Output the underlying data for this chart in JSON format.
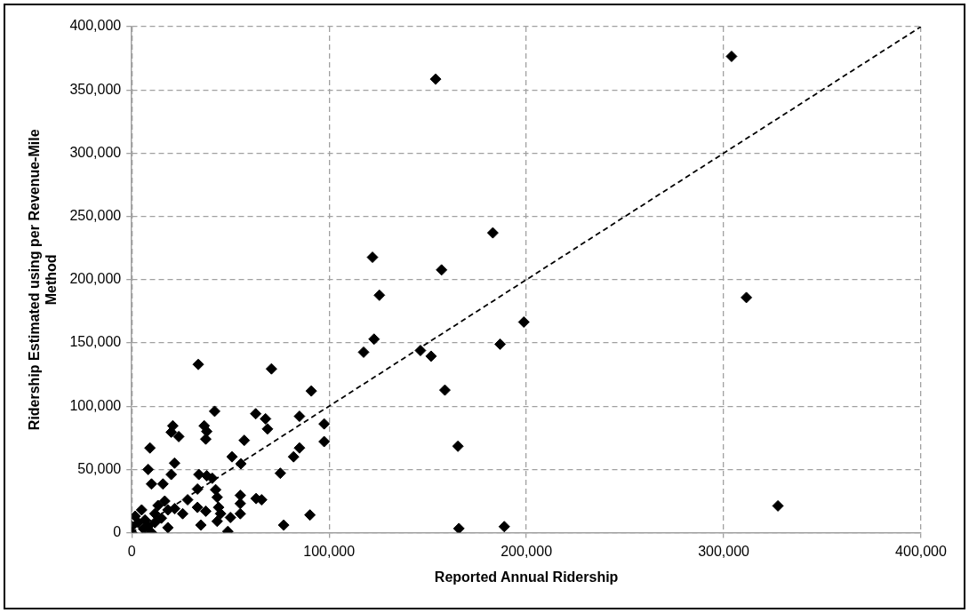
{
  "chart_data": {
    "type": "scatter",
    "xlabel": "Reported Annual Ridership",
    "ylabel": "Ridership Estimated using per Revenue-Mile Method",
    "xlim": [
      0,
      400000
    ],
    "ylim": [
      0,
      400000
    ],
    "xticks": [
      0,
      {
        "value": 100000,
        "label": "100,000"
      },
      {
        "value": 200000,
        "label": "200,000"
      },
      {
        "value": 300000,
        "label": "300,000"
      },
      {
        "value": 400000,
        "label": "400,000"
      }
    ],
    "yticks": [
      0,
      {
        "value": 50000,
        "label": "50,000"
      },
      {
        "value": 100000,
        "label": "100,000"
      },
      {
        "value": 150000,
        "label": "150,000"
      },
      {
        "value": 200000,
        "label": "200,000"
      },
      {
        "value": 250000,
        "label": "250,000"
      },
      {
        "value": 300000,
        "label": "300,000"
      },
      {
        "value": 350000,
        "label": "350,000"
      },
      {
        "value": 400000,
        "label": "400,000"
      }
    ],
    "grid": true,
    "legend": false,
    "series": [
      {
        "type": "scatter",
        "color": "#000000",
        "marker": "diamond",
        "x": [
          33700,
          70800,
          91000,
          42000,
          62800,
          67800,
          68800,
          85000,
          97500,
          97500,
          20800,
          20000,
          23800,
          36700,
          38000,
          37500,
          9200,
          57000,
          85000,
          82000,
          50800,
          55300,
          21700,
          8300,
          75300,
          10000,
          20000,
          15800,
          34000,
          38000,
          40800,
          33300,
          42500,
          43300,
          28300,
          55000,
          55000,
          63000,
          65800,
          33300,
          37500,
          44000,
          45000,
          43300,
          35000,
          50000,
          55000,
          48700,
          77000,
          90300,
          25800,
          16700,
          13300,
          18300,
          21700,
          11700,
          15000,
          5000,
          1700,
          0,
          3300,
          8300,
          10000,
          18300,
          0,
          6700,
          11700,
          6000,
          154000,
          304000,
          183000,
          122000,
          157000,
          125500,
          198700,
          122800,
          186700,
          117500,
          146300,
          151700,
          158700,
          165300,
          165800,
          188800,
          311500,
          327500
        ],
        "values": [
          133000,
          129500,
          112000,
          96000,
          94000,
          90000,
          82000,
          92000,
          86000,
          72000,
          84500,
          79500,
          76000,
          84500,
          80000,
          74000,
          67000,
          73000,
          67000,
          60000,
          60000,
          54500,
          55000,
          50000,
          47000,
          38500,
          46000,
          38500,
          46000,
          45000,
          43000,
          34500,
          34000,
          28000,
          26000,
          29500,
          23000,
          27000,
          26000,
          20000,
          17000,
          20000,
          15000,
          9000,
          6000,
          12000,
          15000,
          1000,
          6000,
          14000,
          15000,
          25000,
          21500,
          18000,
          19000,
          15000,
          11500,
          18000,
          13000,
          5000,
          8000,
          5000,
          0,
          4000,
          0,
          10000,
          8000,
          3000,
          358500,
          376500,
          237000,
          217700,
          207700,
          187700,
          166500,
          153000,
          149000,
          142700,
          144000,
          139500,
          112700,
          68300,
          3300,
          4800,
          185900,
          21200
        ]
      },
      {
        "type": "line",
        "color": "#000000",
        "marker": "none",
        "line_style": "dashed",
        "x": [
          0,
          400000
        ],
        "values": [
          0,
          400000
        ]
      }
    ]
  }
}
